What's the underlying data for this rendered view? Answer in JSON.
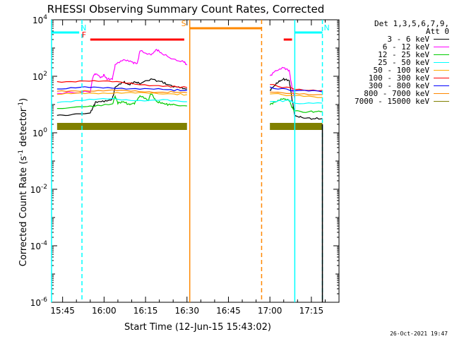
{
  "chart_data": {
    "type": "line",
    "title": "RHESSI Observing Summary Count Rates, Corrected",
    "xlabel": "Start Time (12-Jun-15 15:43:02)",
    "ylabel": "Corrected Count Rate (s⁻¹ detector⁻¹)",
    "ylabel_main": "Corrected Count Rate (s",
    "ylabel_mid": " detector",
    "ylabel_close": ")",
    "ylabel_sup": "-1",
    "yscale": "log",
    "ylim_exp": [
      -6,
      4
    ],
    "ytick_exps": [
      -6,
      -4,
      -2,
      0,
      2,
      4
    ],
    "ytick_base": "10",
    "xlim_min": [
      -2,
      102
    ],
    "xtick_labels": [
      "15:45",
      "16:00",
      "16:15",
      "16:30",
      "16:45",
      "17:00",
      "17:15"
    ],
    "xtick_minutes": [
      2,
      17,
      32,
      47,
      62,
      77,
      92
    ],
    "x_units": "minutes since 15:43",
    "legend_header": [
      "Det 1,3,5,6,7,9,",
      "Att 0"
    ],
    "series": [
      {
        "name": "3 - 6 keV",
        "color": "#000000",
        "segments": [
          {
            "x": [
              0,
              6,
              12,
              13,
              14,
              17,
              20,
              21,
              24,
              26,
              28,
              30,
              34,
              38,
              40,
              44,
              47
            ],
            "y_log": [
              0.6,
              0.65,
              0.7,
              0.9,
              1.1,
              1.1,
              1.2,
              1.6,
              1.8,
              1.7,
              1.8,
              1.75,
              1.9,
              1.8,
              1.7,
              1.6,
              1.55
            ]
          },
          {
            "x": [
              77,
              78,
              80,
              82,
              84,
              85,
              86,
              88,
              92,
              96
            ],
            "y_log": [
              1.5,
              1.6,
              1.8,
              1.9,
              1.85,
              1.2,
              0.6,
              0.55,
              0.5,
              0.5
            ]
          }
        ]
      },
      {
        "name": "6 - 12 keV",
        "color": "#ff00ff",
        "segments": [
          {
            "x": [
              0,
              12,
              13,
              14,
              16,
              17,
              18,
              20,
              21,
              24,
              27,
              29,
              30,
              34,
              36,
              38,
              42,
              46,
              47
            ],
            "y_log": [
              1.4,
              1.45,
              2.0,
              2.1,
              1.95,
              2.05,
              1.9,
              1.9,
              2.4,
              2.6,
              2.5,
              2.45,
              2.9,
              2.75,
              2.95,
              2.8,
              2.6,
              2.5,
              2.4
            ]
          },
          {
            "x": [
              77,
              79,
              82,
              84,
              85,
              86
            ],
            "y_log": [
              2.0,
              2.2,
              2.3,
              2.2,
              1.6,
              1.2
            ]
          }
        ]
      },
      {
        "name": "12 - 25 keV",
        "color": "#00cc00",
        "segments": [
          {
            "x": [
              0,
              6,
              12,
              20,
              21,
              22,
              24,
              26,
              28,
              30,
              33,
              34,
              36,
              38,
              40,
              42,
              47
            ],
            "y_log": [
              0.85,
              0.9,
              0.95,
              1.0,
              1.3,
              1.05,
              1.1,
              1.0,
              1.05,
              1.3,
              1.15,
              1.4,
              1.1,
              1.05,
              1.0,
              1.0,
              0.95
            ]
          },
          {
            "x": [
              77,
              79,
              82,
              84,
              85,
              86,
              92,
              96
            ],
            "y_log": [
              1.0,
              1.1,
              1.2,
              1.15,
              0.9,
              0.75,
              0.75,
              0.75
            ]
          }
        ]
      },
      {
        "name": "25 - 50 keV",
        "color": "#00ffff",
        "segments": [
          {
            "x": [
              0,
              10,
              20,
              30,
              40,
              47
            ],
            "y_log": [
              1.1,
              1.15,
              1.2,
              1.15,
              1.15,
              1.1
            ]
          },
          {
            "x": [
              77,
              84,
              86,
              96
            ],
            "y_log": [
              1.1,
              1.15,
              1.05,
              1.05
            ]
          }
        ]
      },
      {
        "name": "50 - 100 keV",
        "color": "#ffaa00",
        "segments": [
          {
            "x": [
              0,
              10,
              20,
              30,
              40,
              47
            ],
            "y_log": [
              1.35,
              1.4,
              1.42,
              1.4,
              1.38,
              1.35
            ]
          },
          {
            "x": [
              77,
              86,
              96
            ],
            "y_log": [
              1.4,
              1.3,
              1.25
            ]
          }
        ]
      },
      {
        "name": "100 - 300 keV",
        "color": "#ff0000",
        "segments": [
          {
            "x": [
              0,
              10,
              20,
              30,
              40,
              47
            ],
            "y_log": [
              1.8,
              1.85,
              1.8,
              1.72,
              1.65,
              1.6
            ]
          },
          {
            "x": [
              77,
              86,
              96
            ],
            "y_log": [
              1.7,
              1.55,
              1.5
            ]
          }
        ]
      },
      {
        "name": "300 - 800 keV",
        "color": "#0000ff",
        "segments": [
          {
            "x": [
              0,
              10,
              20,
              30,
              40,
              47
            ],
            "y_log": [
              1.55,
              1.6,
              1.6,
              1.55,
              1.52,
              1.5
            ]
          },
          {
            "x": [
              77,
              86,
              96
            ],
            "y_log": [
              1.6,
              1.5,
              1.45
            ]
          }
        ]
      },
      {
        "name": "800 - 7000 keV",
        "color": "#ff8800",
        "segments": [
          {
            "x": [
              0,
              10,
              20,
              30,
              40,
              47
            ],
            "y_log": [
              1.45,
              1.5,
              1.5,
              1.45,
              1.45,
              1.42
            ]
          },
          {
            "x": [
              77,
              86,
              96
            ],
            "y_log": [
              1.45,
              1.38,
              1.35
            ]
          }
        ]
      },
      {
        "name": "7000 - 15000 keV",
        "color": "#808000",
        "segments": [
          {
            "x": [
              0,
              47
            ],
            "y_log": [
              0.2,
              0.2
            ]
          },
          {
            "x": [
              77,
              96
            ],
            "y_log": [
              0.2,
              0.2
            ]
          }
        ]
      }
    ],
    "annotations": {
      "flags": [
        {
          "label": "N",
          "color": "#00ffff",
          "solid_bar": [
            -2,
            8
          ],
          "dashed_line": 9,
          "solid_line": -2,
          "level_log": 3.55
        },
        {
          "label": "N",
          "color": "#00ffff",
          "solid_bar": [
            86,
            96
          ],
          "solid_line": 86,
          "dashed_line": 96,
          "level_log": 3.55
        },
        {
          "label": "F",
          "color": "#ff0000",
          "solid_bar": [
            12,
            46
          ],
          "level_log": 3.3
        },
        {
          "label": "",
          "color": "#ff0000",
          "solid_bar": [
            82,
            85
          ],
          "level_log": 3.3
        },
        {
          "label": "S",
          "color": "#ff8800",
          "solid_bar": [
            48,
            74
          ],
          "solid_line": 48,
          "dashed_line": 74,
          "level_log": 3.7
        }
      ],
      "solid_black_line": 96
    },
    "timestamp": "26-Oct-2021 19:47"
  }
}
